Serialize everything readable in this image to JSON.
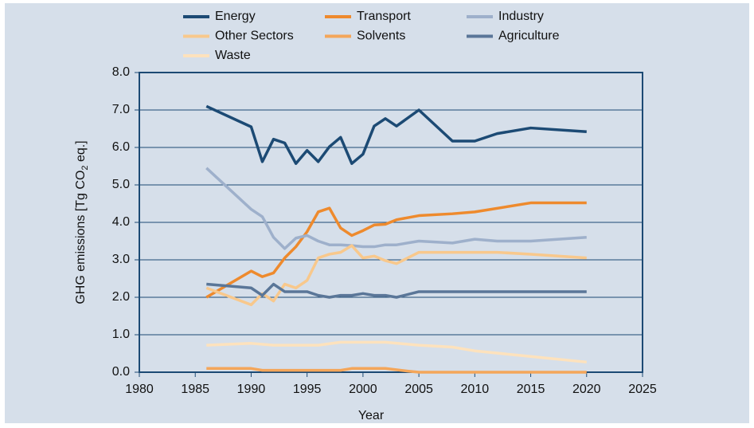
{
  "chart_data": {
    "type": "line",
    "x_label": "Year",
    "y_label": [
      "GHG emissions [Tg CO",
      "2",
      " eq.]"
    ],
    "xlim": [
      1980,
      2025
    ],
    "xticks": [
      1980,
      1985,
      1990,
      1995,
      2000,
      2005,
      2010,
      2015,
      2020,
      2025
    ],
    "ylim": [
      0,
      8
    ],
    "yticks": [
      {
        "value": 0,
        "label": "0.0"
      },
      {
        "value": 1,
        "label": "1.0"
      },
      {
        "value": 2,
        "label": "2.0"
      },
      {
        "value": 3,
        "label": "3.0"
      },
      {
        "value": 4,
        "label": "4.0"
      },
      {
        "value": 5,
        "label": "5.0"
      },
      {
        "value": 6,
        "label": "6.0"
      },
      {
        "value": 7,
        "label": "7.0"
      },
      {
        "value": 8,
        "label": "8.0"
      }
    ],
    "grid": true,
    "series": [
      {
        "name": "Energy",
        "color": "#1c4a74",
        "x": [
          1986,
          1990,
          1991,
          1992,
          1993,
          1994,
          1995,
          1996,
          1997,
          1998,
          1999,
          2000,
          2001,
          2002,
          2003,
          2005,
          2008,
          2010,
          2012,
          2015,
          2020
        ],
        "values": [
          7.1,
          6.55,
          5.62,
          6.22,
          6.12,
          5.57,
          5.92,
          5.62,
          6.02,
          6.27,
          5.57,
          5.82,
          6.57,
          6.77,
          6.57,
          7.0,
          6.17,
          6.17,
          6.37,
          6.52,
          6.42
        ]
      },
      {
        "name": "Transport",
        "color": "#ee8a2d",
        "x": [
          1986,
          1990,
          1991,
          1992,
          1993,
          1994,
          1995,
          1996,
          1997,
          1998,
          1999,
          2000,
          2001,
          2002,
          2003,
          2005,
          2008,
          2010,
          2015,
          2020
        ],
        "values": [
          2.0,
          2.7,
          2.55,
          2.65,
          3.05,
          3.35,
          3.75,
          4.28,
          4.38,
          3.85,
          3.65,
          3.78,
          3.93,
          3.95,
          4.07,
          4.18,
          4.23,
          4.28,
          4.52,
          4.52
        ]
      },
      {
        "name": "Industry",
        "color": "#9eb0cb",
        "x": [
          1986,
          1990,
          1991,
          1992,
          1993,
          1994,
          1995,
          1996,
          1997,
          1998,
          1999,
          2000,
          2001,
          2002,
          2003,
          2005,
          2008,
          2010,
          2012,
          2015,
          2020
        ],
        "values": [
          5.45,
          4.35,
          4.15,
          3.6,
          3.3,
          3.58,
          3.65,
          3.5,
          3.4,
          3.4,
          3.38,
          3.35,
          3.35,
          3.4,
          3.4,
          3.5,
          3.45,
          3.55,
          3.5,
          3.5,
          3.6
        ]
      },
      {
        "name": "Other Sectors",
        "color": "#f8c88c",
        "x": [
          1986,
          1990,
          1991,
          1992,
          1993,
          1994,
          1995,
          1996,
          1997,
          1998,
          1999,
          2000,
          2001,
          2002,
          2003,
          2005,
          2010,
          2012,
          2015,
          2020
        ],
        "values": [
          2.25,
          1.8,
          2.1,
          1.9,
          2.35,
          2.25,
          2.45,
          3.05,
          3.15,
          3.2,
          3.38,
          3.05,
          3.1,
          2.98,
          2.9,
          3.2,
          3.2,
          3.2,
          3.15,
          3.05
        ]
      },
      {
        "name": "Solvents",
        "color": "#f4a65a",
        "x": [
          1986,
          1990,
          1991,
          1998,
          1999,
          2002,
          2004,
          2005,
          2020
        ],
        "values": [
          0.1,
          0.1,
          0.05,
          0.05,
          0.1,
          0.1,
          0.03,
          0,
          0
        ]
      },
      {
        "name": "Agriculture",
        "color": "#5a7698",
        "x": [
          1986,
          1990,
          1991,
          1992,
          1993,
          1995,
          1996,
          1997,
          1998,
          1999,
          2000,
          2001,
          2002,
          2003,
          2005,
          2020
        ],
        "values": [
          2.35,
          2.25,
          2.05,
          2.35,
          2.15,
          2.15,
          2.05,
          2.0,
          2.05,
          2.05,
          2.1,
          2.05,
          2.05,
          2.0,
          2.15,
          2.15
        ]
      },
      {
        "name": "Waste",
        "color": "#fde2bd",
        "x": [
          1986,
          1990,
          1992,
          1996,
          1998,
          2002,
          2005,
          2008,
          2010,
          2015,
          2020
        ],
        "values": [
          0.72,
          0.77,
          0.72,
          0.72,
          0.8,
          0.8,
          0.72,
          0.67,
          0.57,
          0.42,
          0.27
        ]
      }
    ]
  }
}
